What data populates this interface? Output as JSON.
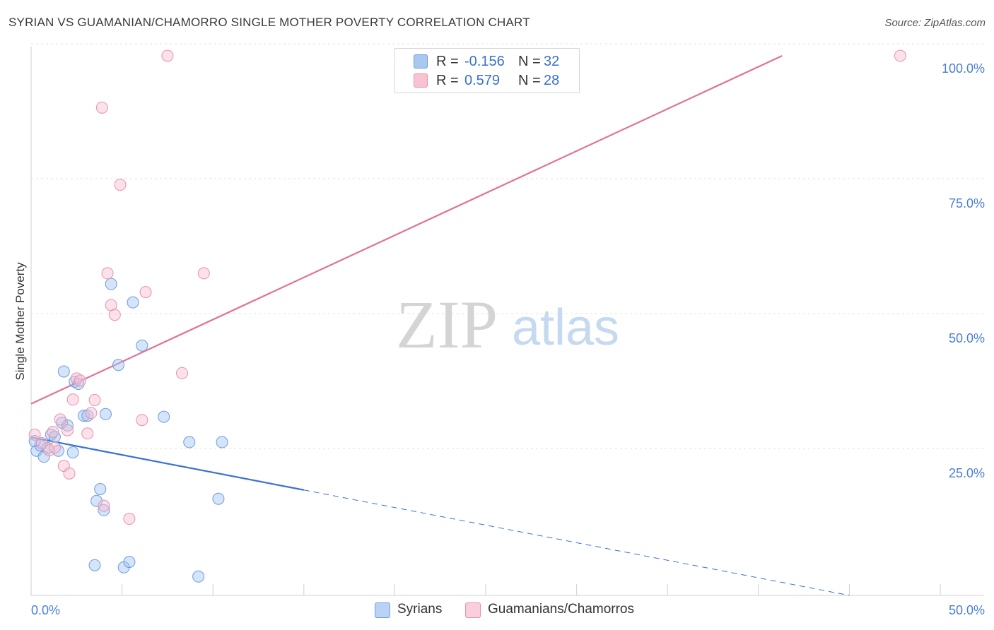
{
  "title": "SYRIAN VS GUAMANIAN/CHAMORRO SINGLE MOTHER POVERTY CORRELATION CHART",
  "source": "Source: ZipAtlas.com",
  "watermark": {
    "zip": "ZIP",
    "atlas": "atlas"
  },
  "stats": [
    {
      "r_label": "R =",
      "r_value": "-0.156",
      "n_label": "N =",
      "n_value": "32",
      "color": "#a9c8f0",
      "border": "#6e9be0"
    },
    {
      "r_label": "R =",
      "r_value": "0.579",
      "n_label": "N =",
      "n_value": "28",
      "color": "#f7c3d3",
      "border": "#ea8fac"
    }
  ],
  "legend": [
    {
      "label": "Syrians",
      "color": "#b9d3f5",
      "border": "#6e9be0"
    },
    {
      "label": "Guamanians/Chamorros",
      "color": "#f9cfdc",
      "border": "#ea8fac"
    }
  ],
  "chart_data": {
    "type": "scatter",
    "title": "SYRIAN VS GUAMANIAN/CHAMORRO SINGLE MOTHER POVERTY CORRELATION CHART",
    "xlabel": "",
    "ylabel": "Single Mother Poverty",
    "xlim": [
      0,
      50
    ],
    "ylim": [
      0,
      100
    ],
    "x_tick_labels": [
      "0.0%",
      "50.0%"
    ],
    "y_ticks": [
      25,
      50,
      75,
      100
    ],
    "y_tick_labels": [
      "25.0%",
      "50.0%",
      "75.0%",
      "100.0%"
    ],
    "grid": true,
    "series": [
      {
        "name": "Syrians",
        "color": "#6e9be0",
        "fill": "rgba(160,196,242,0.45)",
        "line_color": "#3a72d2",
        "trend": {
          "x0": 0,
          "y0": 29.3,
          "x_solid_end": 15,
          "x1": 45,
          "y1": 0
        },
        "points": [
          [
            0.3,
            26.8
          ],
          [
            0.5,
            27.8
          ],
          [
            0.7,
            25.7
          ],
          [
            0.9,
            27.3
          ],
          [
            1.1,
            29.8
          ],
          [
            1.3,
            29.4
          ],
          [
            1.5,
            26.8
          ],
          [
            1.7,
            32.0
          ],
          [
            1.8,
            41.5
          ],
          [
            2.0,
            31.5
          ],
          [
            2.3,
            26.5
          ],
          [
            2.4,
            39.6
          ],
          [
            2.6,
            39.2
          ],
          [
            2.9,
            33.3
          ],
          [
            3.1,
            33.3
          ],
          [
            3.5,
            5.6
          ],
          [
            3.6,
            17.5
          ],
          [
            3.8,
            19.7
          ],
          [
            4.0,
            15.8
          ],
          [
            4.1,
            33.6
          ],
          [
            4.4,
            57.7
          ],
          [
            4.8,
            42.7
          ],
          [
            5.1,
            5.2
          ],
          [
            5.4,
            6.2
          ],
          [
            5.6,
            54.3
          ],
          [
            6.1,
            46.3
          ],
          [
            7.3,
            33.1
          ],
          [
            8.7,
            28.4
          ],
          [
            9.2,
            3.5
          ],
          [
            10.3,
            17.9
          ],
          [
            10.5,
            28.4
          ],
          [
            0.2,
            28.6
          ]
        ]
      },
      {
        "name": "Guamanians/Chamorros",
        "color": "#ea8fac",
        "fill": "rgba(246,190,208,0.45)",
        "line_color": "#e2719a",
        "trend": {
          "x0": 0,
          "y0": 35.5,
          "x1": 41.3,
          "y1": 100
        },
        "points": [
          [
            0.2,
            29.8
          ],
          [
            0.6,
            28.2
          ],
          [
            1.0,
            26.9
          ],
          [
            1.2,
            30.3
          ],
          [
            1.3,
            27.4
          ],
          [
            1.6,
            32.6
          ],
          [
            1.8,
            24.0
          ],
          [
            2.0,
            30.6
          ],
          [
            2.1,
            22.6
          ],
          [
            2.3,
            36.3
          ],
          [
            2.5,
            40.2
          ],
          [
            2.7,
            39.8
          ],
          [
            3.1,
            30.0
          ],
          [
            3.3,
            33.8
          ],
          [
            3.5,
            36.2
          ],
          [
            3.9,
            90.4
          ],
          [
            4.0,
            16.6
          ],
          [
            4.2,
            59.7
          ],
          [
            4.4,
            53.8
          ],
          [
            4.6,
            52.0
          ],
          [
            4.9,
            76.1
          ],
          [
            5.4,
            14.2
          ],
          [
            6.1,
            32.5
          ],
          [
            6.3,
            56.2
          ],
          [
            7.5,
            100.0
          ],
          [
            8.3,
            41.2
          ],
          [
            9.5,
            59.7
          ],
          [
            47.8,
            100.0
          ]
        ]
      }
    ]
  }
}
